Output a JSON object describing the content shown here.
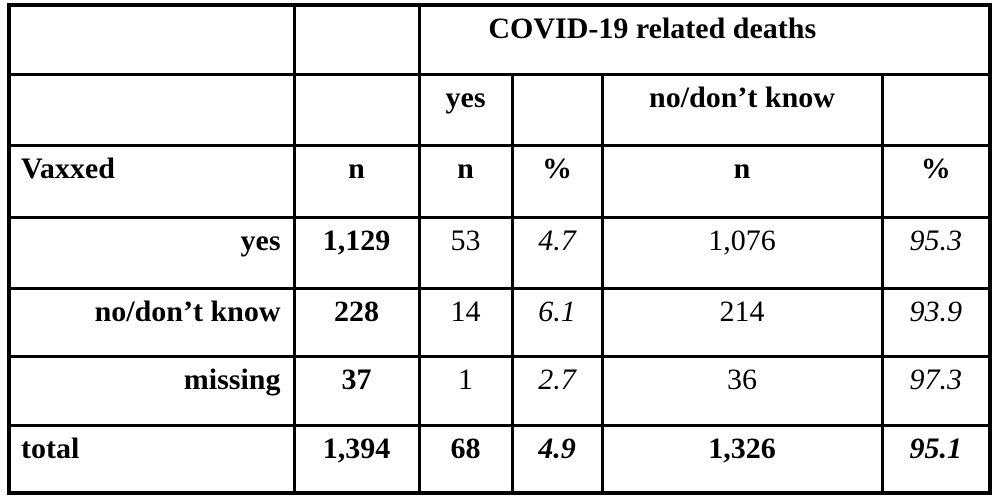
{
  "table": {
    "span_header": "COVID-19 related deaths",
    "groups": {
      "yes": "yes",
      "no": "no/don’t know"
    },
    "header": {
      "columns": [
        "Vaxxed",
        "n",
        "n",
        "%",
        "n",
        "%"
      ]
    },
    "rows": [
      {
        "label": "yes",
        "total_n": "1,129",
        "yes_n": "53",
        "yes_pct": "4.7",
        "no_n": "1,076",
        "no_pct": "95.3"
      },
      {
        "label": "no/don’t know",
        "total_n": "228",
        "yes_n": "14",
        "yes_pct": "6.1",
        "no_n": "214",
        "no_pct": "93.9"
      },
      {
        "label": "missing",
        "total_n": "37",
        "yes_n": "1",
        "yes_pct": "2.7",
        "no_n": "36",
        "no_pct": "97.3"
      }
    ],
    "total": {
      "label": "total",
      "total_n": "1,394",
      "yes_n": "68",
      "yes_pct": "4.9",
      "no_n": "1,326",
      "no_pct": "95.1"
    }
  }
}
